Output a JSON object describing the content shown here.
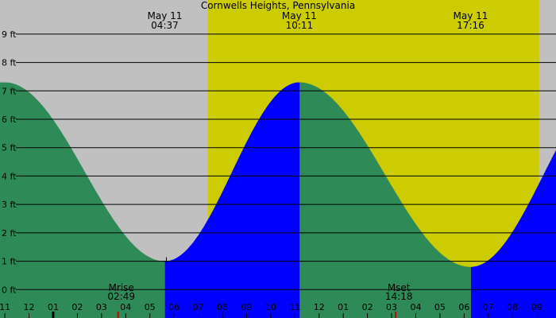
{
  "chart_data": {
    "type": "area",
    "title": "Cornwells Heights, Pennsylvania",
    "y_unit": "ft",
    "ylim": [
      -1.0,
      10.2
    ],
    "y_ticks": [
      "0 ft",
      "1 ft",
      "2 ft",
      "3 ft",
      "4 ft",
      "5 ft",
      "6 ft",
      "7 ft",
      "8 ft",
      "9 ft"
    ],
    "x_hours": [
      -2.2,
      20.8
    ],
    "hour_labels": [
      "11",
      "12",
      "01",
      "02",
      "03",
      "04",
      "05",
      "06",
      "07",
      "08",
      "09",
      "10",
      "11",
      "12",
      "01",
      "02",
      "03",
      "04",
      "05",
      "06",
      "07",
      "08",
      "09"
    ],
    "daylight": {
      "start": 6.4,
      "end": 20.1
    },
    "tide_events": [
      {
        "date": "May 11",
        "time": "04:37",
        "hour": 4.617,
        "height": 1.0,
        "type": "low"
      },
      {
        "date": "May 11",
        "time": "10:11",
        "hour": 10.183,
        "height": 7.3,
        "type": "high"
      },
      {
        "date": "May 11",
        "time": "17:16",
        "hour": 17.267,
        "height": 0.8,
        "type": "low"
      },
      {
        "hour": 23.3,
        "height": 7.3,
        "type": "high"
      },
      {
        "hour": -2.0,
        "height": 7.3,
        "type": "high"
      }
    ],
    "moon": [
      {
        "label": "Mrise",
        "time": "02:49",
        "hour": 2.817
      },
      {
        "label": "Mset",
        "time": "14:18",
        "hour": 14.3
      }
    ],
    "colors": {
      "night": "#c0c0c0",
      "day": "#cccc00",
      "falling": "#2e8b57",
      "rising": "#0000ff",
      "grid": "#000000",
      "moon_marker": "#cc0000"
    }
  }
}
